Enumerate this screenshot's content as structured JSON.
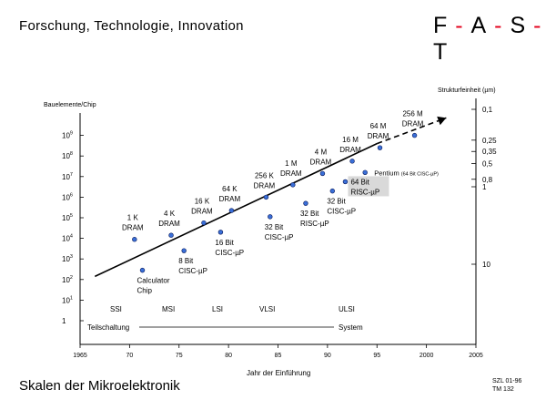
{
  "header": {
    "title": "Forschung, Technologie, Innovation",
    "logo": {
      "letters": [
        "F",
        "A",
        "S",
        "T"
      ],
      "separators": [
        "-",
        "-",
        "-"
      ],
      "accent_color": "#e3001b"
    }
  },
  "footer": {
    "title": "Skalen der Mikroelektronik",
    "ref_lines": [
      "SZL 01-96",
      "TM 132"
    ]
  },
  "chart_data": {
    "type": "scatter",
    "xlabel": "Jahr der Einführung",
    "ylabel_left": "Bauelemente/Chip",
    "ylabel_right": "Strukturfeinheit (µm)",
    "xlim": [
      1965,
      2005
    ],
    "x_ticks": [
      "1965",
      "70",
      "75",
      "80",
      "85",
      "90",
      "95",
      "2000",
      "2005"
    ],
    "y_left_log": true,
    "y_left_ticks": [
      {
        "base": "1",
        "exp": ""
      },
      {
        "base": "10",
        "exp": "1"
      },
      {
        "base": "10",
        "exp": "2"
      },
      {
        "base": "10",
        "exp": "3"
      },
      {
        "base": "10",
        "exp": "4"
      },
      {
        "base": "10",
        "exp": "5"
      },
      {
        "base": "10",
        "exp": "6"
      },
      {
        "base": "10",
        "exp": "7"
      },
      {
        "base": "10",
        "exp": "8"
      },
      {
        "base": "10",
        "exp": "9"
      }
    ],
    "y_right_log": true,
    "y_right_ticks": [
      "0,1",
      "0,25",
      "0,35",
      "0,5",
      "0,8",
      "1",
      "10"
    ],
    "dram": [
      {
        "name": "1 K DRAM",
        "line1": "1 K",
        "line2": "DRAM",
        "year": 1970.5,
        "log": 3.95
      },
      {
        "name": "4 K DRAM",
        "line1": "4 K",
        "line2": "DRAM",
        "year": 1974.2,
        "log": 4.15
      },
      {
        "name": "16 K DRAM",
        "line1": "16 K",
        "line2": "DRAM",
        "year": 1977.5,
        "log": 4.75
      },
      {
        "name": "64 K DRAM",
        "line1": "64 K",
        "line2": "DRAM",
        "year": 1980.3,
        "log": 5.35
      },
      {
        "name": "256 K DRAM",
        "line1": "256 K",
        "line2": "DRAM",
        "year": 1983.8,
        "log": 6.0
      },
      {
        "name": "1 M DRAM",
        "line1": "1 M",
        "line2": "DRAM",
        "year": 1986.5,
        "log": 6.6
      },
      {
        "name": "4 M DRAM",
        "line1": "4 M",
        "line2": "DRAM",
        "year": 1989.5,
        "log": 7.15
      },
      {
        "name": "16 M DRAM",
        "line1": "16 M",
        "line2": "DRAM",
        "year": 1992.5,
        "log": 7.75
      },
      {
        "name": "64 M DRAM",
        "line1": "64 M",
        "line2": "DRAM",
        "year": 1995.3,
        "log": 8.4
      },
      {
        "name": "256 M DRAM",
        "line1": "256 M",
        "line2": "DRAM",
        "year": 1998.8,
        "log": 9.0
      }
    ],
    "processors": [
      {
        "name": "Calculator Chip",
        "line1": "Calculator",
        "line2": "Chip",
        "year": 1971.3,
        "log": 2.45
      },
      {
        "name": "8 Bit CISC-µP",
        "line1": "8 Bit",
        "line2": "CISC-µP",
        "year": 1975.5,
        "log": 3.4
      },
      {
        "name": "16 Bit CISC-µP",
        "line1": "16 Bit",
        "line2": "CISC-µP",
        "year": 1979.2,
        "log": 4.3
      },
      {
        "name": "32 Bit CISC-µP",
        "line1": "32 Bit",
        "line2": "CISC-µP",
        "year": 1984.2,
        "log": 5.05
      },
      {
        "name": "32 Bit RISC-µP",
        "line1": "32 Bit",
        "line2": "RISC-µP",
        "year": 1987.8,
        "log": 5.7
      },
      {
        "name": "32 Bit CISC-µP (2)",
        "line1": "32 Bit",
        "line2": "CISC-µP",
        "year": 1990.5,
        "log": 6.3
      },
      {
        "name": "64 Bit RISC-µP",
        "line1": "64 Bit",
        "line2": "RISC-µP",
        "year": 1991.8,
        "log": 6.75,
        "highlight": true
      },
      {
        "name": "Pentium",
        "line1": "Pentium",
        "line2": "(64 Bit CISC-µP)",
        "year": 1993.8,
        "log": 7.2
      }
    ],
    "trend_solid": {
      "x": [
        1966.5,
        1995.0
      ],
      "log": [
        2.15,
        8.6
      ]
    },
    "trend_dashed": {
      "x": [
        1995.0,
        2002.0
      ],
      "log": [
        8.6,
        9.85
      ]
    },
    "integration_scales": [
      "SSI",
      "MSI",
      "LSI",
      "VLSI",
      "ULSI"
    ],
    "range_labels": {
      "start": "Teilschaltung",
      "end": "System"
    },
    "colors": {
      "point_fill": "#3a6fd8",
      "point_stroke": "#0a1a5a",
      "highlight": "#d9d9d9"
    }
  }
}
